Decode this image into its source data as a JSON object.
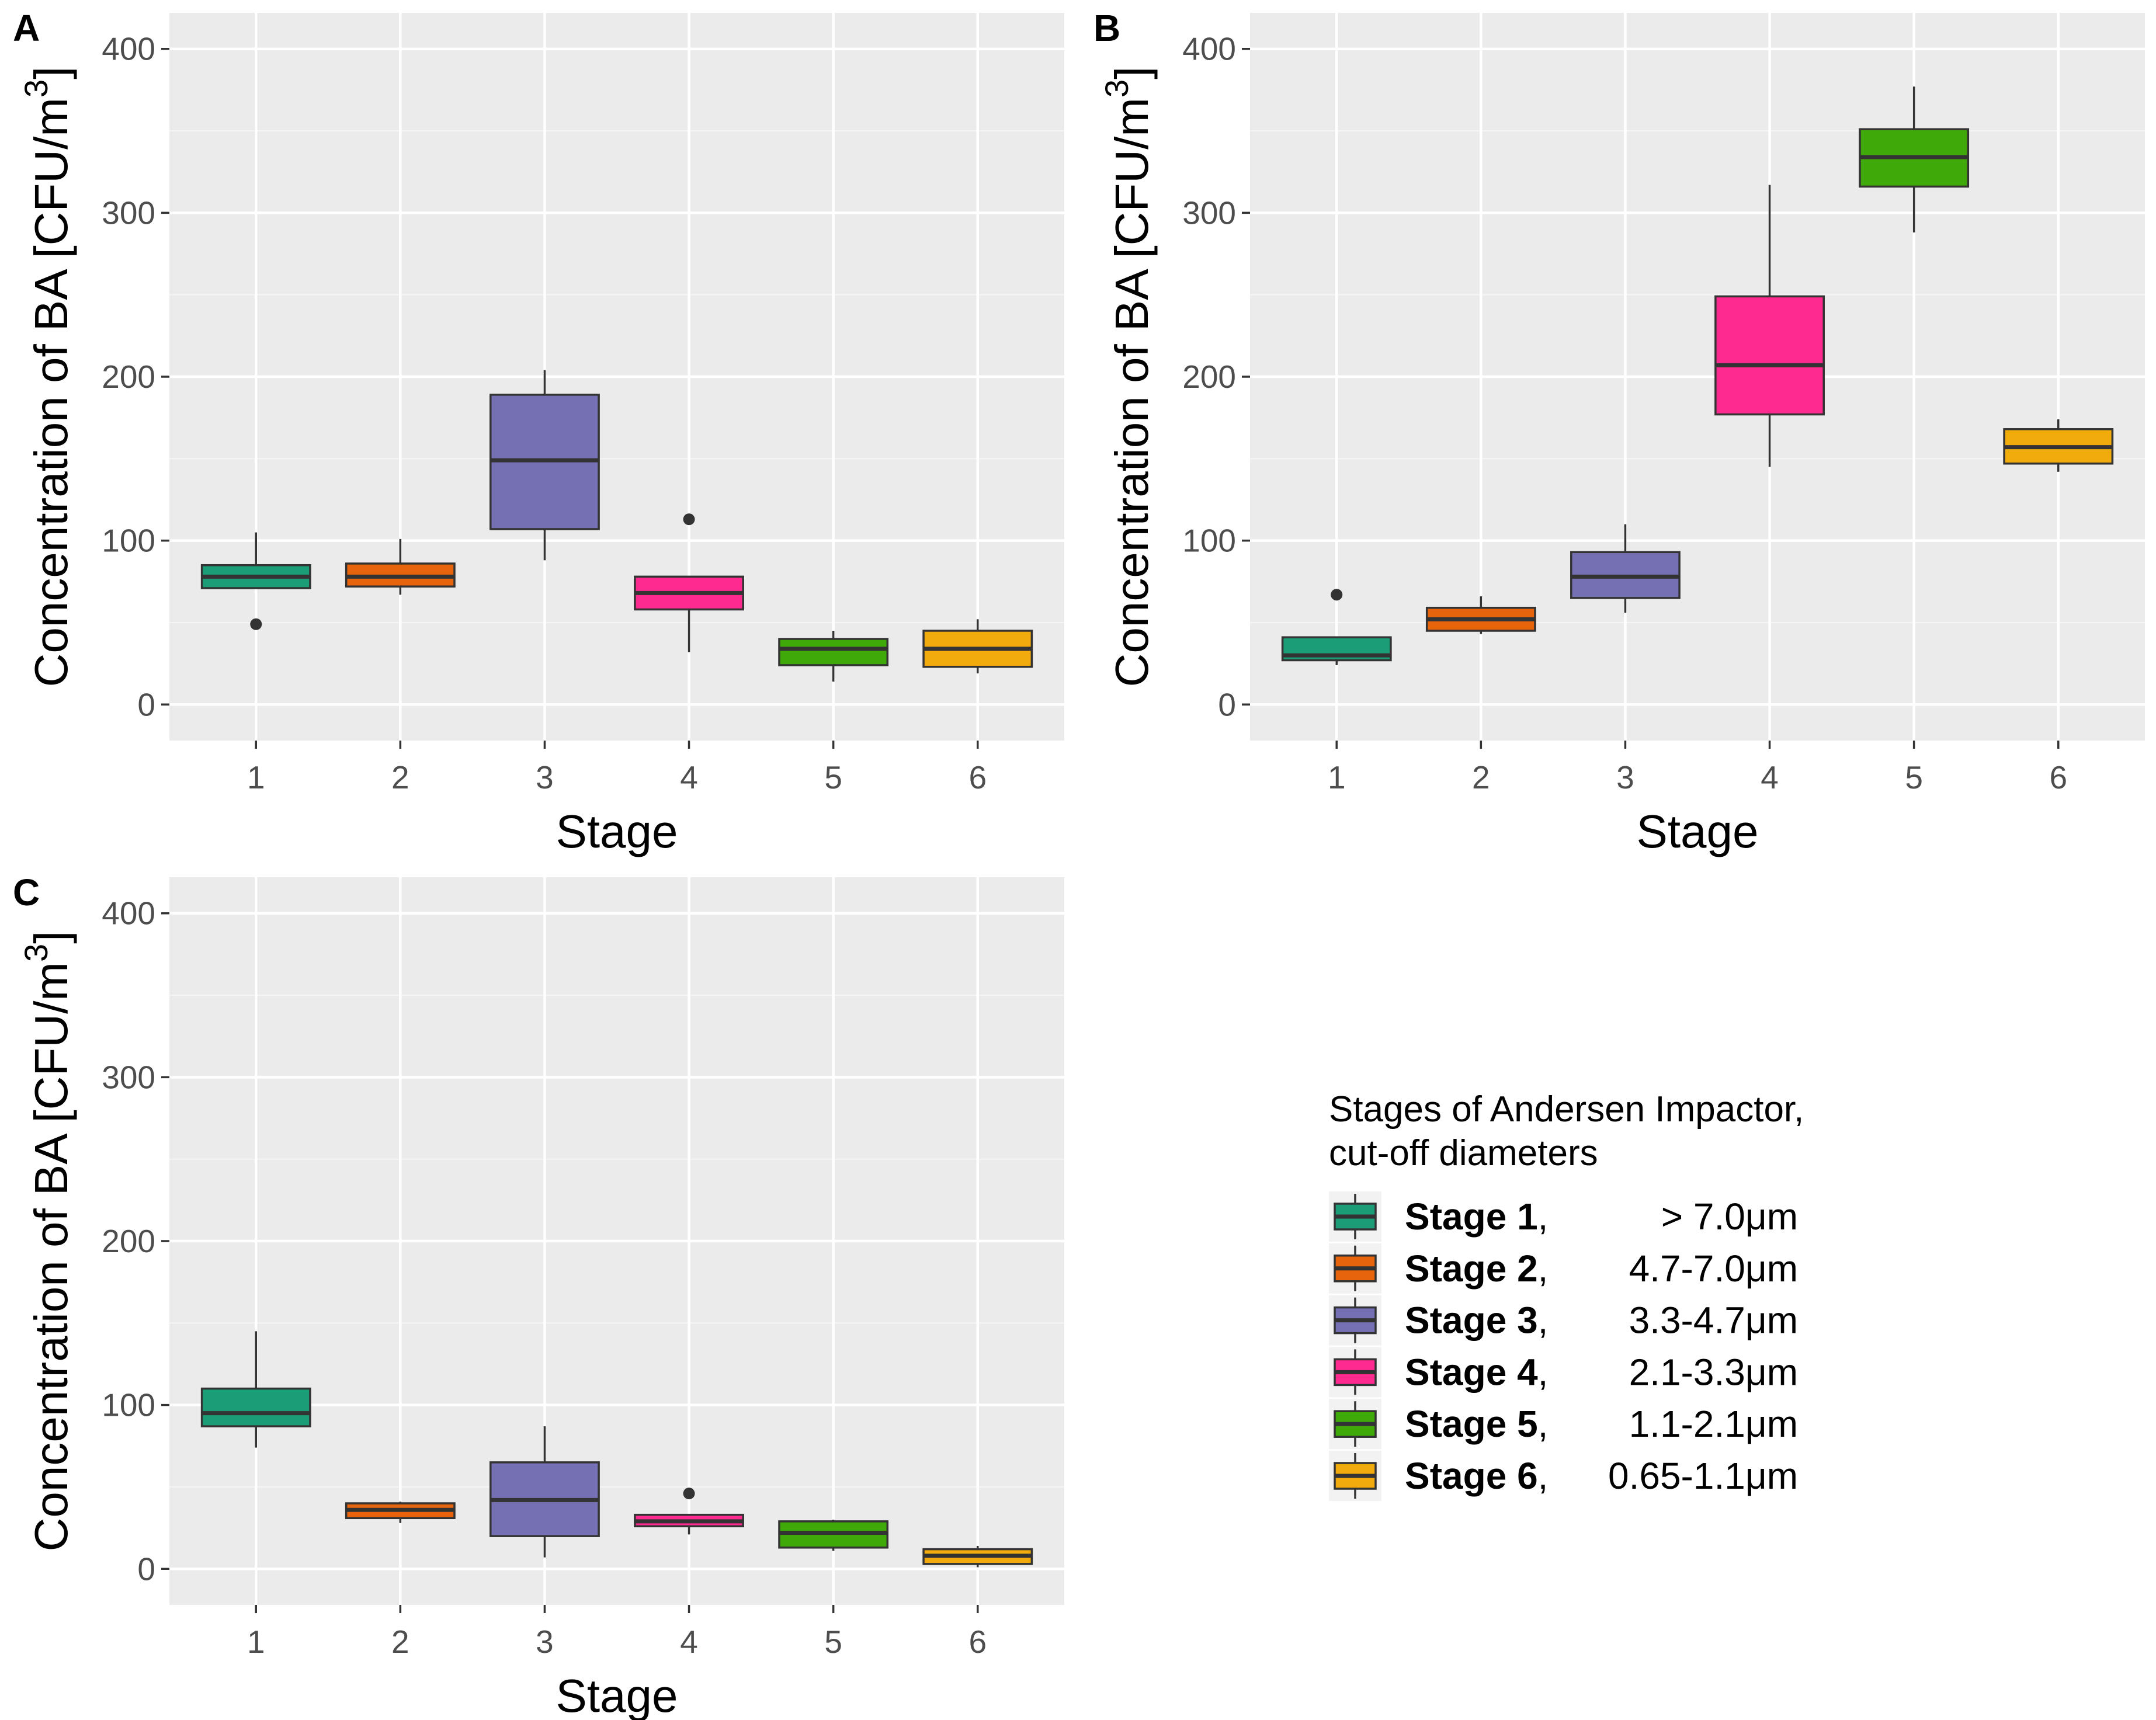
{
  "colors": {
    "stage_1": "#1b9e77",
    "stage_2": "#e7640c",
    "stage_3": "#7570b3",
    "stage_4": "#ff2a8f",
    "stage_5": "#40a90a",
    "stage_6": "#f2ab0c"
  },
  "legend": {
    "title_line1": "Stages of Andersen Impactor,",
    "title_line2": "cut-off diameters",
    "items": [
      {
        "stage": "Stage 1",
        "sep": ",",
        "range": "> 7.0μm",
        "color": "#1b9e77"
      },
      {
        "stage": "Stage 2",
        "sep": ",",
        "range": "4.7-7.0μm",
        "color": "#e7640c"
      },
      {
        "stage": "Stage 3",
        "sep": ",",
        "range": "3.3-4.7μm",
        "color": "#7570b3"
      },
      {
        "stage": "Stage 4",
        "sep": ",",
        "range": "2.1-3.3μm",
        "color": "#ff2a8f"
      },
      {
        "stage": "Stage 5",
        "sep": ",",
        "range": "1.1-2.1μm",
        "color": "#40a90a"
      },
      {
        "stage": "Stage 6",
        "sep": ",",
        "range": "0.65-1.1μm",
        "color": "#f2ab0c"
      }
    ]
  },
  "chart_data": [
    {
      "type": "box",
      "panel": "A",
      "xlabel": "Stage",
      "ylabel_main": "Concentration of BA [CFU/m",
      "ylabel_sup": "3",
      "ylabel_end": "]",
      "categories": [
        "1",
        "2",
        "3",
        "4",
        "5",
        "6"
      ],
      "ylim": [
        -22,
        422
      ],
      "yticks": [
        0,
        100,
        200,
        300,
        400
      ],
      "boxes": [
        {
          "q1": 71,
          "median": 78,
          "q3": 85,
          "lo": 71,
          "hi": 105,
          "outliers": [
            49
          ]
        },
        {
          "q1": 72,
          "median": 78,
          "q3": 86,
          "lo": 67,
          "hi": 101,
          "outliers": []
        },
        {
          "q1": 107,
          "median": 149,
          "q3": 189,
          "lo": 88,
          "hi": 204,
          "outliers": []
        },
        {
          "q1": 58,
          "median": 68,
          "q3": 78,
          "lo": 32,
          "hi": 78,
          "outliers": [
            113
          ]
        },
        {
          "q1": 24,
          "median": 34,
          "q3": 40,
          "lo": 14,
          "hi": 45,
          "outliers": []
        },
        {
          "q1": 23,
          "median": 34,
          "q3": 45,
          "lo": 19,
          "hi": 52,
          "outliers": []
        }
      ]
    },
    {
      "type": "box",
      "panel": "B",
      "xlabel": "Stage",
      "ylabel_main": "Concentration of BA [CFU/m",
      "ylabel_sup": "3",
      "ylabel_end": "]",
      "categories": [
        "1",
        "2",
        "3",
        "4",
        "5",
        "6"
      ],
      "ylim": [
        -22,
        422
      ],
      "yticks": [
        0,
        100,
        200,
        300,
        400
      ],
      "boxes": [
        {
          "q1": 27,
          "median": 30,
          "q3": 41,
          "lo": 24,
          "hi": 41,
          "outliers": [
            67
          ]
        },
        {
          "q1": 45,
          "median": 52,
          "q3": 59,
          "lo": 43,
          "hi": 66,
          "outliers": []
        },
        {
          "q1": 65,
          "median": 78,
          "q3": 93,
          "lo": 56,
          "hi": 110,
          "outliers": []
        },
        {
          "q1": 177,
          "median": 207,
          "q3": 249,
          "lo": 145,
          "hi": 317,
          "outliers": []
        },
        {
          "q1": 316,
          "median": 334,
          "q3": 351,
          "lo": 288,
          "hi": 377,
          "outliers": []
        },
        {
          "q1": 147,
          "median": 157,
          "q3": 168,
          "lo": 142,
          "hi": 174,
          "outliers": []
        }
      ]
    },
    {
      "type": "box",
      "panel": "C",
      "xlabel": "Stage",
      "ylabel_main": "Concentration of BA [CFU/m",
      "ylabel_sup": "3",
      "ylabel_end": "]",
      "categories": [
        "1",
        "2",
        "3",
        "4",
        "5",
        "6"
      ],
      "ylim": [
        -22,
        422
      ],
      "yticks": [
        0,
        100,
        200,
        300,
        400
      ],
      "boxes": [
        {
          "q1": 87,
          "median": 95,
          "q3": 110,
          "lo": 74,
          "hi": 145,
          "outliers": []
        },
        {
          "q1": 31,
          "median": 36,
          "q3": 40,
          "lo": 28,
          "hi": 41,
          "outliers": []
        },
        {
          "q1": 20,
          "median": 42,
          "q3": 65,
          "lo": 7,
          "hi": 87,
          "outliers": []
        },
        {
          "q1": 26,
          "median": 29,
          "q3": 33,
          "lo": 21,
          "hi": 33,
          "outliers": [
            46
          ]
        },
        {
          "q1": 13,
          "median": 22,
          "q3": 29,
          "lo": 11,
          "hi": 30,
          "outliers": []
        },
        {
          "q1": 3,
          "median": 8,
          "q3": 12,
          "lo": 1,
          "hi": 14,
          "outliers": []
        }
      ]
    }
  ]
}
